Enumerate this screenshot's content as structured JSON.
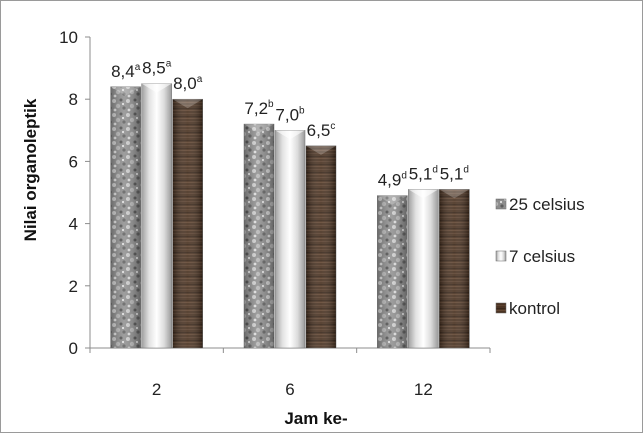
{
  "chart_data": {
    "type": "bar",
    "categories": [
      "2",
      "6",
      "12"
    ],
    "series": [
      {
        "name": "25 celsius",
        "values": [
          8.4,
          7.2,
          4.9
        ],
        "labels": [
          "8,4",
          "7,2",
          "4,9"
        ],
        "superscripts": [
          "a",
          "b",
          "d"
        ],
        "style": "granite"
      },
      {
        "name": "7 celsius",
        "values": [
          8.5,
          7.0,
          5.1
        ],
        "labels": [
          "8,5",
          "7,0",
          "5,1"
        ],
        "superscripts": [
          "a",
          "b",
          "d"
        ],
        "style": "silver"
      },
      {
        "name": "kontrol",
        "values": [
          8.0,
          6.5,
          5.1
        ],
        "labels": [
          "8,0",
          "6,5",
          "5,1"
        ],
        "superscripts": [
          "a",
          "c",
          "d"
        ],
        "style": "wood"
      }
    ],
    "xlabel": "Jam ke-",
    "ylabel": "Nilai organoleptik",
    "ylim": [
      0,
      10
    ],
    "yticks": [
      "0",
      "2",
      "4",
      "6",
      "8",
      "10"
    ],
    "grid": false,
    "legend_position": "right"
  },
  "colors": {
    "granite": "#8a8a8a",
    "silver": "#e6e6e6",
    "wood": "#4a3422",
    "axis": "#8c8c8c"
  }
}
